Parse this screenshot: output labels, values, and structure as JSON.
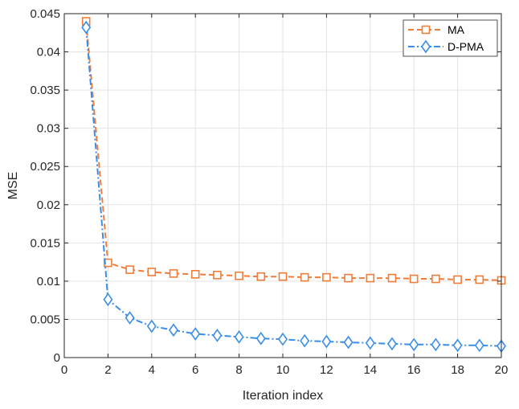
{
  "chart_data": {
    "type": "line",
    "title": "",
    "xlabel": "Iteration index",
    "ylabel": "MSE",
    "xlim": [
      0,
      20
    ],
    "ylim": [
      0,
      0.045
    ],
    "xticks": [
      0,
      2,
      4,
      6,
      8,
      10,
      12,
      14,
      16,
      18,
      20
    ],
    "xtick_labels": [
      "0",
      "2",
      "4",
      "6",
      "8",
      "10",
      "12",
      "14",
      "16",
      "18",
      "20"
    ],
    "yticks": [
      0,
      0.005,
      0.01,
      0.015,
      0.02,
      0.025,
      0.03,
      0.035,
      0.04,
      0.045
    ],
    "ytick_labels": [
      "0",
      "0.005",
      "0.01",
      "0.015",
      "0.02",
      "0.025",
      "0.03",
      "0.035",
      "0.04",
      "0.045"
    ],
    "grid": true,
    "legend_position": "top-right",
    "x": [
      1,
      2,
      3,
      4,
      5,
      6,
      7,
      8,
      9,
      10,
      11,
      12,
      13,
      14,
      15,
      16,
      17,
      18,
      19,
      20
    ],
    "series": [
      {
        "name": "MA",
        "color": "#f07c3a",
        "line_style": "dashed",
        "marker": "square",
        "values": [
          0.044,
          0.0124,
          0.0115,
          0.0112,
          0.011,
          0.0109,
          0.0108,
          0.0107,
          0.0106,
          0.0106,
          0.0105,
          0.0105,
          0.0104,
          0.0104,
          0.0104,
          0.0103,
          0.0103,
          0.0102,
          0.0102,
          0.0101
        ]
      },
      {
        "name": "D-PMA",
        "color": "#3a8ee6",
        "line_style": "dash-dot",
        "marker": "diamond",
        "values": [
          0.0432,
          0.0076,
          0.0052,
          0.0041,
          0.0036,
          0.0031,
          0.0029,
          0.0027,
          0.0025,
          0.0024,
          0.0022,
          0.0021,
          0.002,
          0.0019,
          0.0018,
          0.0017,
          0.0017,
          0.0016,
          0.0016,
          0.0015
        ]
      }
    ]
  }
}
